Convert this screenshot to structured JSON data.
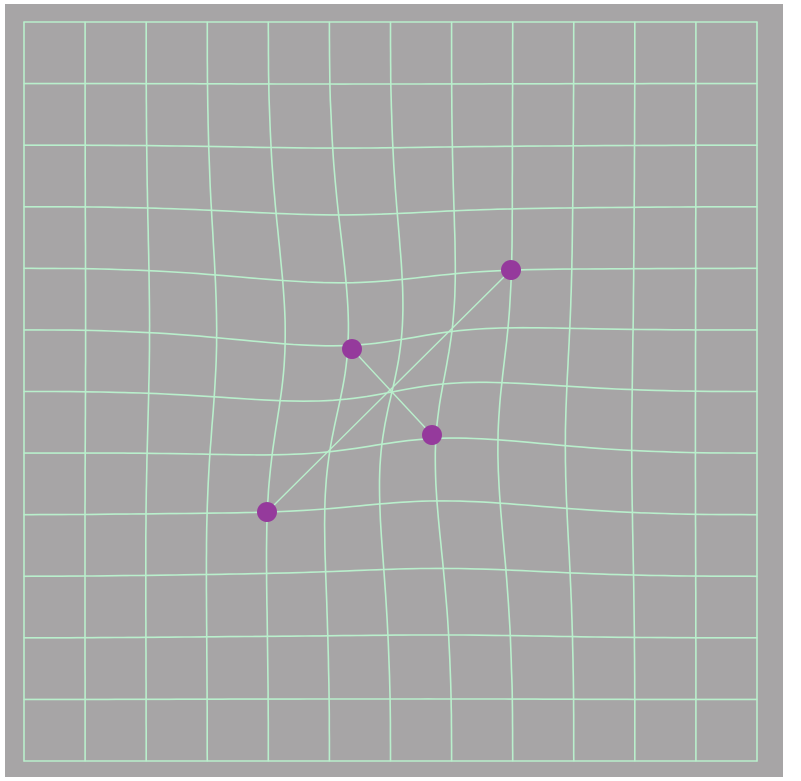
{
  "mesh_editor": {
    "background_color": "#a7a5a6",
    "mesh_color": "#b9efcc",
    "handle_color": "#953a9c",
    "grid": {
      "columns": 12,
      "rows": 12
    },
    "handles": [
      {
        "id": "handle-top-right"
      },
      {
        "id": "handle-upper-middle"
      },
      {
        "id": "handle-center-right"
      },
      {
        "id": "handle-lower-left"
      }
    ]
  }
}
